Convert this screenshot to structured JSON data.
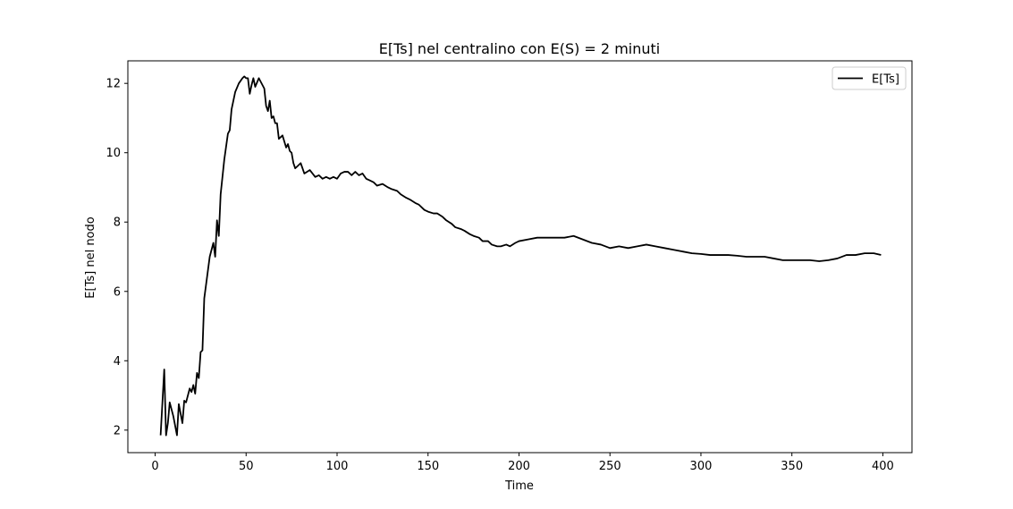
{
  "chart_data": {
    "type": "line",
    "title": "E[Ts] nel centralino con E(S) = 2 minuti",
    "xlabel": "Time",
    "ylabel": "E[Ts] nel nodo",
    "xlim": [
      -15,
      416
    ],
    "ylim": [
      1.35,
      12.65
    ],
    "xticks": [
      0,
      50,
      100,
      150,
      200,
      250,
      300,
      350,
      400
    ],
    "yticks": [
      2,
      4,
      6,
      8,
      10,
      12
    ],
    "grid": false,
    "legend_position": "top-right",
    "series": [
      {
        "name": "E[Ts]",
        "color": "#000000",
        "x": [
          3,
          5,
          6,
          7,
          8,
          10,
          12,
          13,
          15,
          16,
          17,
          19,
          20,
          21,
          22,
          23,
          24,
          25,
          26,
          27,
          28,
          30,
          32,
          33,
          34,
          35,
          36,
          38,
          40,
          41,
          42,
          44,
          46,
          48,
          49,
          50,
          51,
          52,
          53,
          54,
          55,
          57,
          58,
          60,
          61,
          62,
          63,
          64,
          65,
          66,
          67,
          68,
          70,
          72,
          73,
          74,
          75,
          76,
          77,
          78,
          80,
          82,
          85,
          88,
          90,
          92,
          94,
          96,
          98,
          100,
          102,
          104,
          106,
          108,
          110,
          112,
          114,
          116,
          118,
          120,
          122,
          125,
          128,
          130,
          133,
          135,
          138,
          140,
          143,
          145,
          148,
          150,
          153,
          155,
          158,
          160,
          163,
          165,
          168,
          170,
          173,
          175,
          178,
          180,
          183,
          185,
          188,
          190,
          193,
          195,
          198,
          200,
          205,
          210,
          215,
          220,
          225,
          230,
          235,
          240,
          245,
          250,
          255,
          260,
          265,
          270,
          275,
          280,
          285,
          290,
          295,
          300,
          305,
          310,
          315,
          320,
          325,
          330,
          335,
          340,
          345,
          350,
          355,
          360,
          365,
          370,
          375,
          380,
          385,
          390,
          395,
          399
        ],
        "y": [
          1.85,
          3.75,
          1.85,
          2.2,
          2.8,
          2.4,
          1.85,
          2.75,
          2.2,
          2.85,
          2.8,
          3.2,
          3.1,
          3.3,
          3.05,
          3.65,
          3.5,
          4.25,
          4.3,
          5.8,
          6.2,
          7.0,
          7.4,
          7.0,
          8.05,
          7.6,
          8.8,
          9.8,
          10.55,
          10.65,
          11.25,
          11.75,
          12.0,
          12.15,
          12.2,
          12.15,
          12.15,
          11.7,
          11.95,
          12.15,
          11.9,
          12.15,
          12.05,
          11.85,
          11.35,
          11.2,
          11.5,
          11.0,
          11.05,
          10.85,
          10.85,
          10.4,
          10.5,
          10.15,
          10.25,
          10.05,
          10.0,
          9.7,
          9.55,
          9.6,
          9.7,
          9.4,
          9.5,
          9.3,
          9.35,
          9.25,
          9.3,
          9.25,
          9.3,
          9.25,
          9.4,
          9.45,
          9.45,
          9.35,
          9.45,
          9.35,
          9.4,
          9.25,
          9.2,
          9.15,
          9.05,
          9.1,
          9.0,
          8.95,
          8.9,
          8.8,
          8.7,
          8.65,
          8.55,
          8.5,
          8.35,
          8.3,
          8.25,
          8.25,
          8.15,
          8.05,
          7.95,
          7.85,
          7.8,
          7.75,
          7.65,
          7.6,
          7.55,
          7.45,
          7.45,
          7.35,
          7.3,
          7.3,
          7.35,
          7.3,
          7.4,
          7.45,
          7.5,
          7.55,
          7.55,
          7.55,
          7.55,
          7.6,
          7.5,
          7.4,
          7.35,
          7.25,
          7.3,
          7.25,
          7.3,
          7.35,
          7.3,
          7.25,
          7.2,
          7.15,
          7.1,
          7.08,
          7.05,
          7.05,
          7.05,
          7.03,
          7.0,
          7.0,
          7.0,
          6.95,
          6.9,
          6.9,
          6.9,
          6.9,
          6.87,
          6.9,
          6.95,
          7.05,
          7.05,
          7.1,
          7.1,
          7.05
        ]
      }
    ]
  }
}
